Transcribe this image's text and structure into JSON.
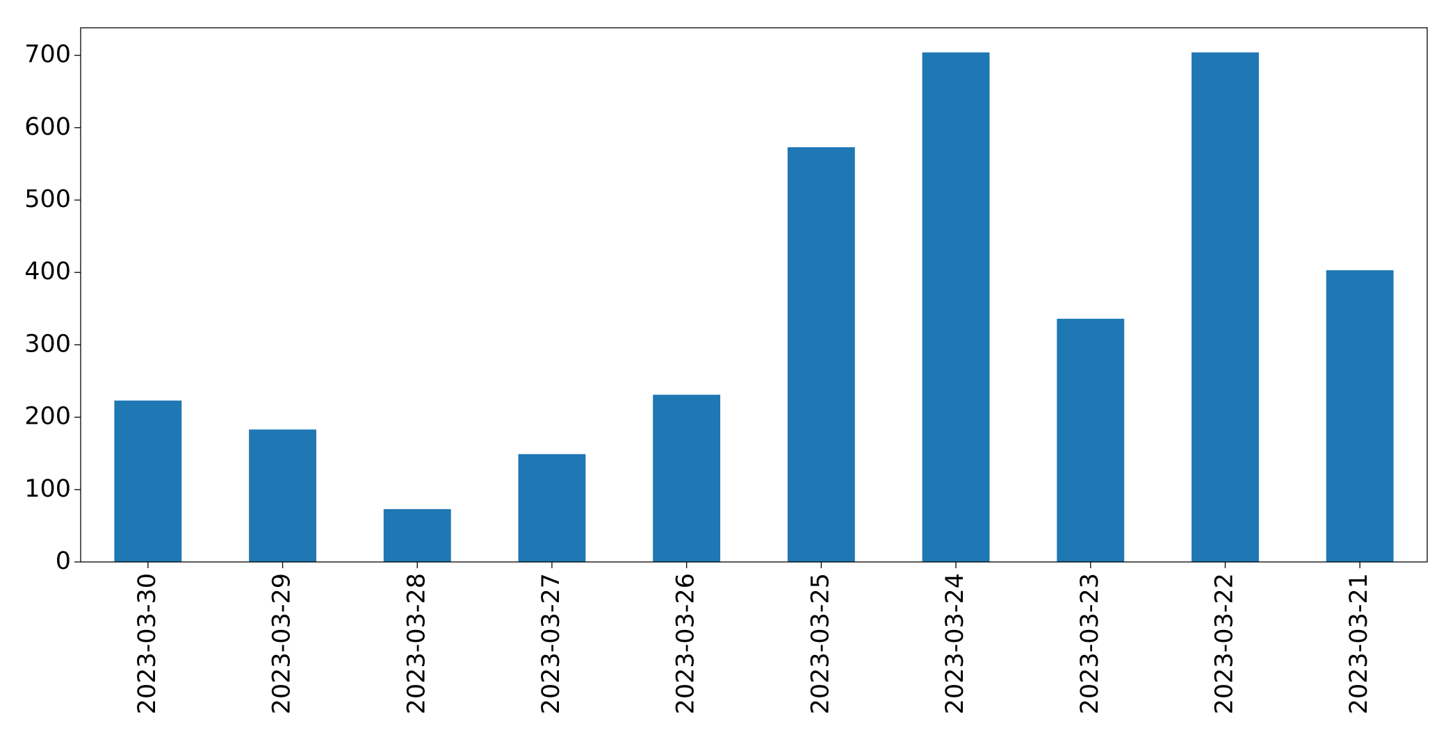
{
  "chart_data": {
    "type": "bar",
    "categories": [
      "2023-03-30",
      "2023-03-29",
      "2023-03-28",
      "2023-03-27",
      "2023-03-26",
      "2023-03-25",
      "2023-03-24",
      "2023-03-23",
      "2023-03-22",
      "2023-03-21"
    ],
    "values": [
      223,
      183,
      73,
      149,
      231,
      573,
      704,
      336,
      704,
      403
    ],
    "color": "#1f77b4",
    "ylim": [
      0,
      738
    ],
    "yticks": [
      0,
      100,
      200,
      300,
      400,
      500,
      600,
      700
    ],
    "grid": false
  }
}
